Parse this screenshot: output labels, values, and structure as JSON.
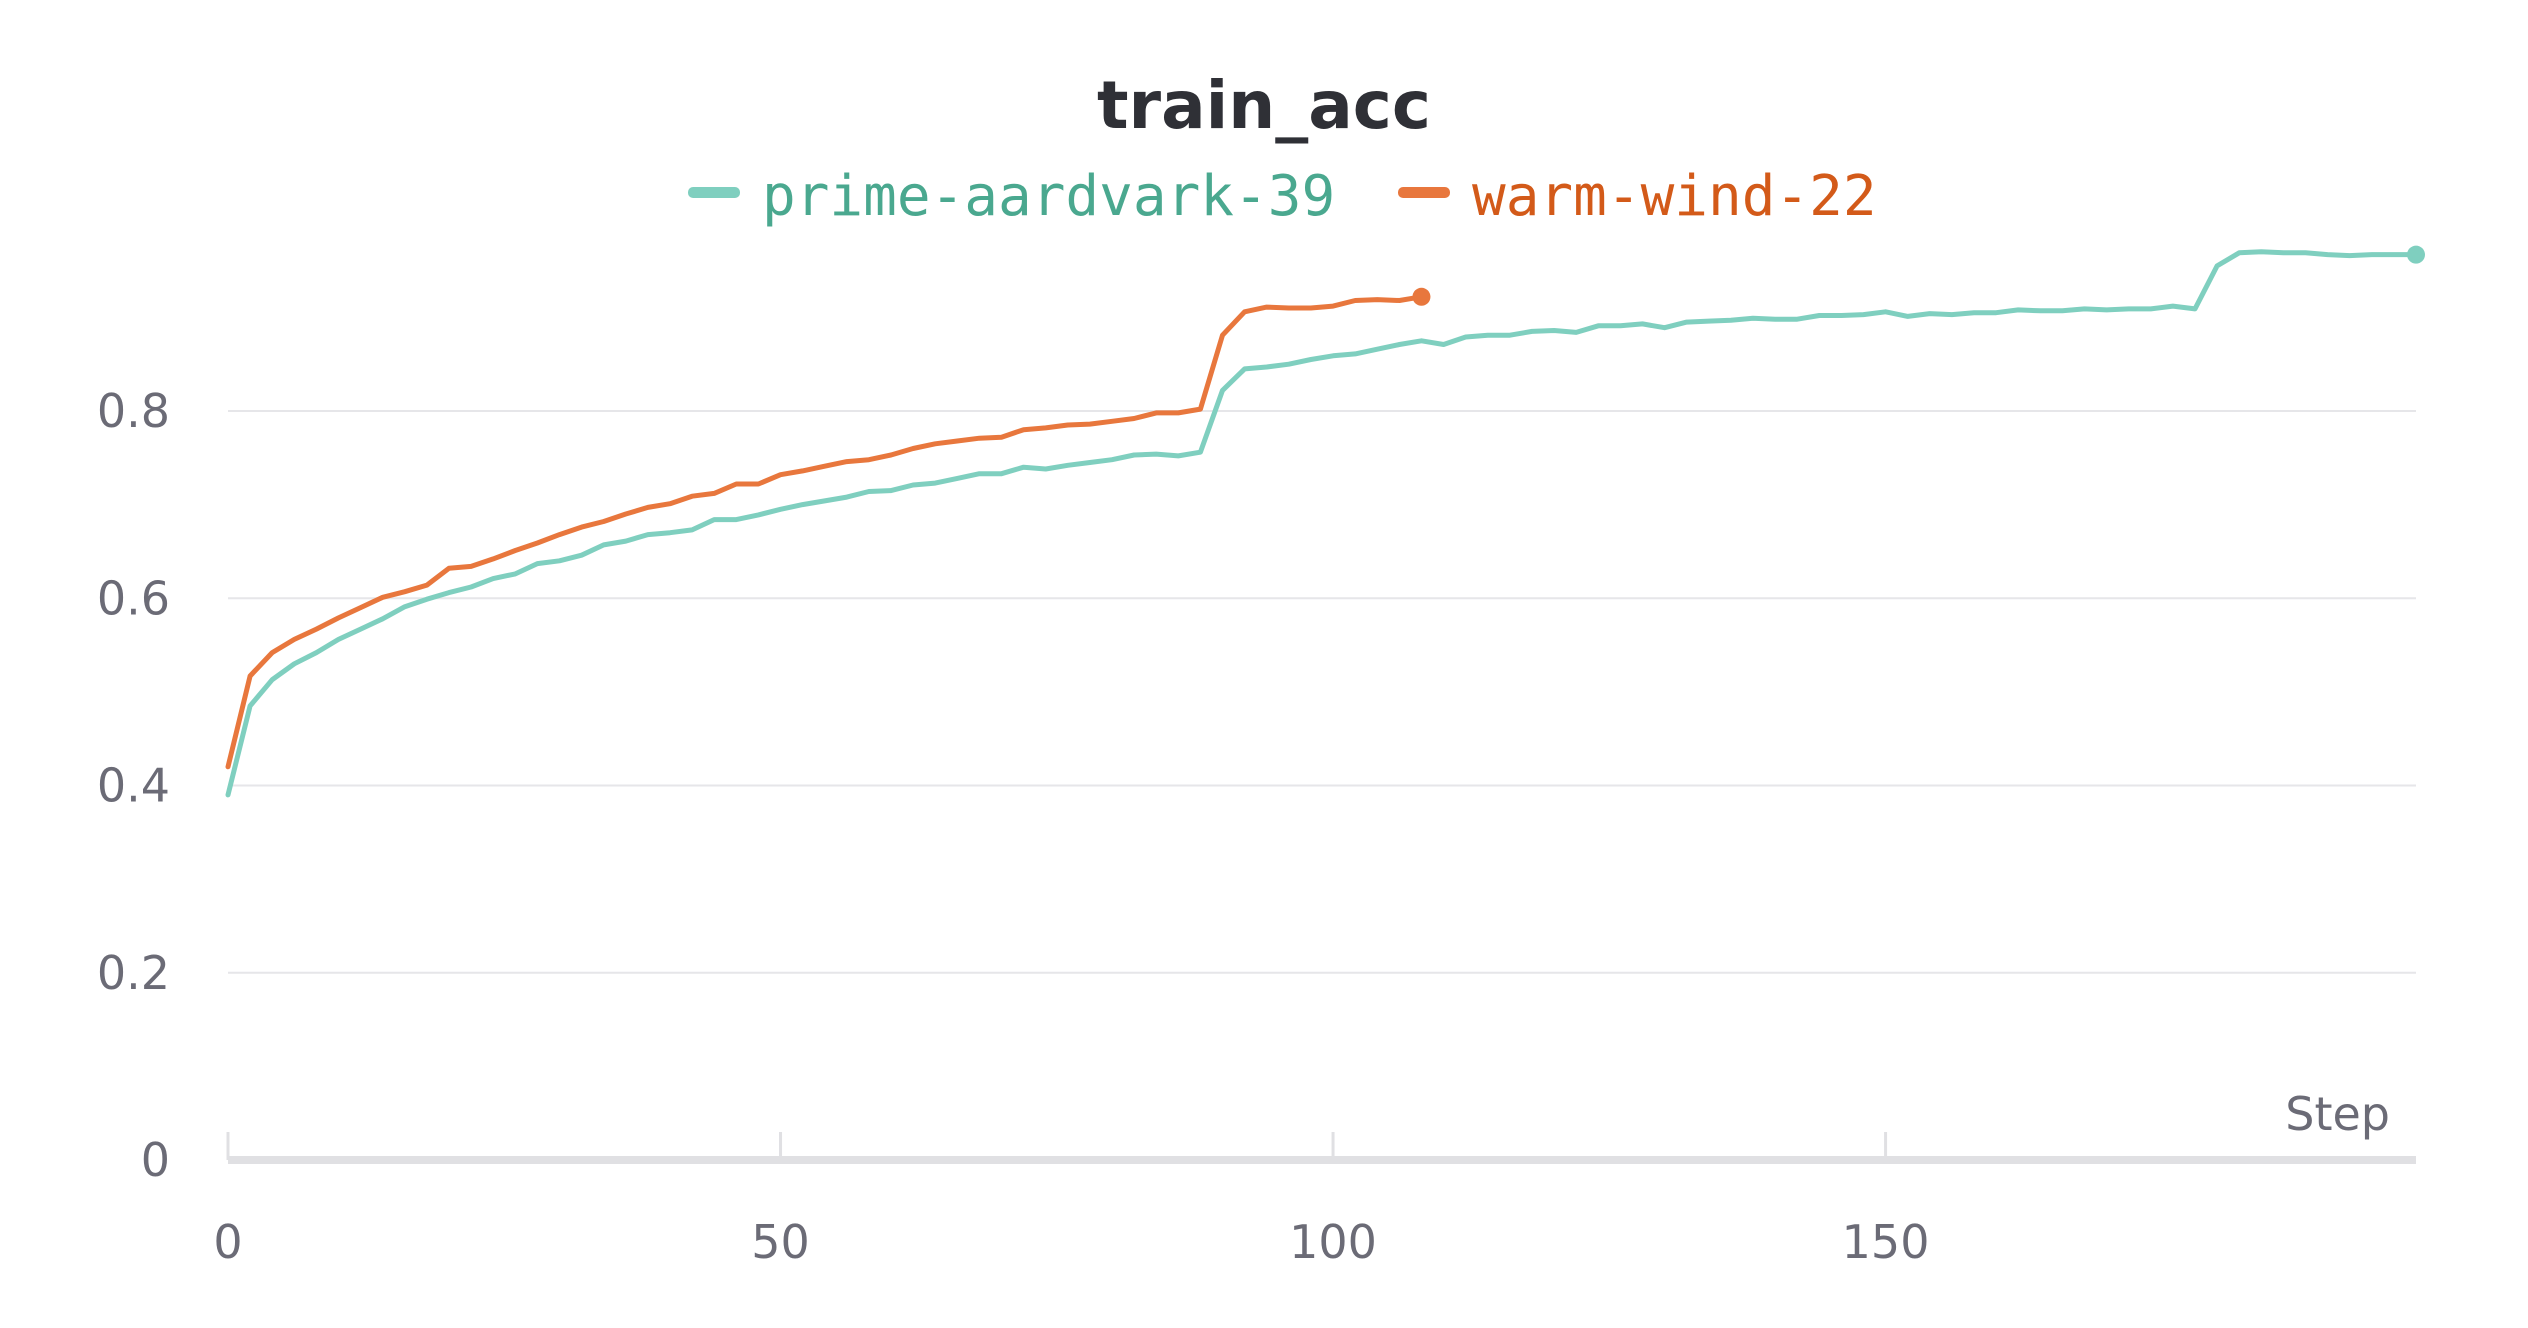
{
  "chart_data": {
    "type": "line",
    "title": "train_acc",
    "xlabel": "Step",
    "ylabel": "",
    "xlim": [
      0,
      198
    ],
    "ylim": [
      0,
      1.0
    ],
    "xticks": [
      0,
      50,
      100,
      150
    ],
    "xtick_labels": [
      "0",
      "50",
      "100",
      "150"
    ],
    "yticks": [
      0,
      0.2,
      0.4,
      0.6,
      0.8
    ],
    "ytick_labels": [
      "0",
      "0.2",
      "0.4",
      "0.6",
      "0.8"
    ],
    "grid": true,
    "legend_position": "top",
    "series": [
      {
        "name": "prime-aardvark-39",
        "color": "#7fcfbf",
        "text_color": "#4aa88f",
        "x": [
          0,
          2,
          4,
          6,
          8,
          10,
          12,
          14,
          16,
          18,
          20,
          22,
          24,
          26,
          28,
          30,
          32,
          34,
          36,
          38,
          40,
          42,
          44,
          46,
          48,
          50,
          52,
          54,
          56,
          58,
          60,
          62,
          64,
          66,
          68,
          70,
          72,
          74,
          76,
          78,
          80,
          82,
          84,
          86,
          88,
          90,
          92,
          94,
          96,
          98,
          100,
          102,
          104,
          106,
          108,
          110,
          112,
          114,
          116,
          118,
          120,
          122,
          124,
          126,
          128,
          130,
          132,
          134,
          136,
          138,
          140,
          142,
          144,
          146,
          148,
          150,
          152,
          154,
          156,
          158,
          160,
          162,
          164,
          166,
          168,
          170,
          172,
          174,
          176,
          178,
          180,
          182,
          184,
          186,
          188,
          190,
          192,
          194,
          196,
          198
        ],
        "y": [
          0.39,
          0.485,
          0.513,
          0.53,
          0.542,
          0.556,
          0.567,
          0.578,
          0.591,
          0.599,
          0.606,
          0.612,
          0.621,
          0.626,
          0.637,
          0.64,
          0.646,
          0.657,
          0.661,
          0.668,
          0.67,
          0.673,
          0.684,
          0.684,
          0.689,
          0.695,
          0.7,
          0.704,
          0.708,
          0.714,
          0.715,
          0.721,
          0.723,
          0.728,
          0.733,
          0.733,
          0.74,
          0.738,
          0.742,
          0.745,
          0.748,
          0.753,
          0.754,
          0.752,
          0.756,
          0.822,
          0.845,
          0.847,
          0.85,
          0.855,
          0.859,
          0.861,
          0.866,
          0.871,
          0.875,
          0.871,
          0.879,
          0.881,
          0.881,
          0.885,
          0.886,
          0.884,
          0.891,
          0.891,
          0.893,
          0.889,
          0.895,
          0.896,
          0.897,
          0.899,
          0.898,
          0.898,
          0.902,
          0.902,
          0.903,
          0.906,
          0.901,
          0.904,
          0.903,
          0.905,
          0.905,
          0.908,
          0.907,
          0.907,
          0.909,
          0.908,
          0.909,
          0.909,
          0.912,
          0.909,
          0.955,
          0.969,
          0.97,
          0.969,
          0.969,
          0.967,
          0.966,
          0.967,
          0.967,
          0.967
        ]
      },
      {
        "name": "warm-wind-22",
        "color": "#e8773d",
        "text_color": "#d35a19",
        "x": [
          0,
          2,
          4,
          6,
          8,
          10,
          12,
          14,
          16,
          18,
          20,
          22,
          24,
          26,
          28,
          30,
          32,
          34,
          36,
          38,
          40,
          42,
          44,
          46,
          48,
          50,
          52,
          54,
          56,
          58,
          60,
          62,
          64,
          66,
          68,
          70,
          72,
          74,
          76,
          78,
          80,
          82,
          84,
          86,
          88,
          90,
          92,
          94,
          96,
          98,
          100,
          102,
          104,
          106,
          108
        ],
        "y": [
          0.42,
          0.517,
          0.542,
          0.556,
          0.567,
          0.579,
          0.59,
          0.601,
          0.607,
          0.614,
          0.632,
          0.634,
          0.642,
          0.651,
          0.659,
          0.668,
          0.676,
          0.682,
          0.69,
          0.697,
          0.701,
          0.709,
          0.712,
          0.722,
          0.722,
          0.732,
          0.736,
          0.741,
          0.746,
          0.748,
          0.753,
          0.76,
          0.765,
          0.768,
          0.771,
          0.772,
          0.78,
          0.782,
          0.785,
          0.786,
          0.789,
          0.792,
          0.798,
          0.798,
          0.802,
          0.881,
          0.906,
          0.911,
          0.91,
          0.91,
          0.912,
          0.918,
          0.919,
          0.918,
          0.922
        ]
      }
    ]
  }
}
